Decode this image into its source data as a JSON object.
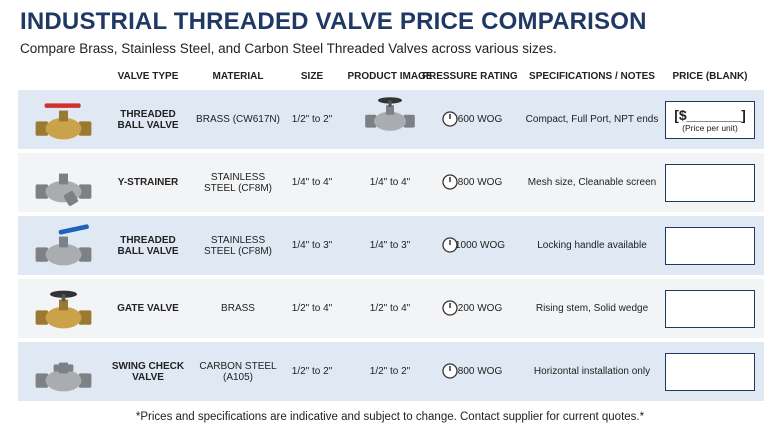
{
  "header": {
    "title": "INDUSTRIAL THREADED VALVE PRICE COMPARISON",
    "subtitle": "Compare Brass, Stainless Steel, and Carbon Steel Threaded Valves across various sizes."
  },
  "table": {
    "columns": [
      "VALVE TYPE",
      "MATERIAL",
      "SIZE",
      "PRODUCT IMAGE",
      "PRESSURE RATING",
      "SPECIFICATIONS / NOTES",
      "PRICE (BLANK)"
    ],
    "rows": [
      {
        "valve_type": "THREADED BALL VALVE",
        "material": "BRASS (CW617N)",
        "size": "1/2\" to 2\"",
        "pressure": "600 WOG",
        "specs": "Compact, Full Port, NPT ends",
        "price": "[$_______]",
        "price_note": "(Price per unit)"
      },
      {
        "valve_type": "Y-STRAINER",
        "material": "STAINLESS STEEL (CF8M)",
        "size": "1/4\" to 4\"",
        "product_image": "1/4\" to 4\"",
        "pressure": "800 WOG",
        "specs": "Mesh size, Cleanable screen"
      },
      {
        "valve_type": "THREADED BALL VALVE",
        "material": "STAINLESS STEEL (CF8M)",
        "size": "1/4\" to 3\"",
        "product_image": "1/4\" to 3\"",
        "pressure": "1000 WOG",
        "specs": "Locking handle available"
      },
      {
        "valve_type": "GATE VALVE",
        "material": "BRASS",
        "size": "1/2\" to 4\"",
        "product_image": "1/2\" to 4\"",
        "pressure": "200 WOG",
        "specs": "Rising stem, Solid wedge"
      },
      {
        "valve_type": "SWING CHECK VALVE",
        "material": "CARBON STEEL (A105)",
        "size": "1/2\" to 2\"",
        "product_image": "1/2\" to 2\"",
        "pressure": "800 WOG",
        "specs": "Horizontal installation only"
      }
    ]
  },
  "footer": "*Prices and specifications are indicative and subject to change. Contact supplier for current quotes.*"
}
